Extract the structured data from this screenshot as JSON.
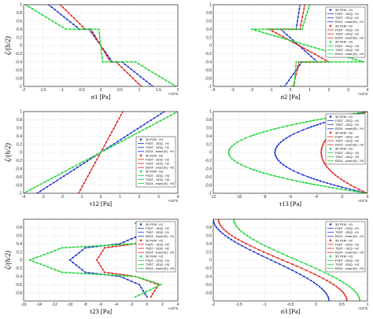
{
  "figure": {
    "title": ""
  },
  "colors": {
    "blue": "#1a2fd6",
    "red": "#e0231b",
    "green": "#22d438",
    "frame": "#000000",
    "grid": "#c8c8c8"
  },
  "legend_entries": [
    {
      "label": "3D FEM - H1",
      "series": 0,
      "kind": "dot"
    },
    {
      "label": "FSDT - GDQ - H1",
      "series": 0,
      "kind": "line"
    },
    {
      "label": "TSDT - GDQ - H1",
      "series": 0,
      "kind": "line"
    },
    {
      "label": "ED24 - exact (E) - H1",
      "series": 0,
      "kind": "line"
    },
    {
      "label": "3D FEM - H2",
      "series": 1,
      "kind": "dot"
    },
    {
      "label": "FSDT - GDQ - H2",
      "series": 1,
      "kind": "line"
    },
    {
      "label": "TSDT - GDQ - H2",
      "series": 1,
      "kind": "line"
    },
    {
      "label": "ED24 - exact (E) - H2",
      "series": 1,
      "kind": "line"
    },
    {
      "label": "3D FEM - H3",
      "series": 2,
      "kind": "dot"
    },
    {
      "label": "FSDT - GDQ - H3",
      "series": 2,
      "kind": "line"
    },
    {
      "label": "TSDT - GDQ - H3",
      "series": 2,
      "kind": "line"
    },
    {
      "label": "ED24 - exact (E) - H3",
      "series": 2,
      "kind": "line"
    }
  ],
  "chart_data": [
    {
      "type": "line",
      "ylabel": "ζ/(h/2)",
      "xlabel": "σ1 [Pa]",
      "x_exponent": "×10^6",
      "xlim": [
        -2,
        2
      ],
      "ylim": [
        -1,
        1
      ],
      "xticks": [
        -2,
        -1.5,
        -1,
        -0.5,
        0,
        0.5,
        1,
        1.5,
        2
      ],
      "yticks": [
        -1,
        -0.8,
        -0.6,
        -0.4,
        -0.2,
        0,
        0.2,
        0.4,
        0.6,
        0.8,
        1
      ],
      "legend": "none",
      "series": [
        {
          "color": "blue",
          "x": [
            -1.35,
            -0.55,
            -0.3,
            0.3,
            0.55,
            1.35
          ],
          "y": [
            1,
            0.4,
            0.4,
            -0.4,
            -0.4,
            -1
          ]
        },
        {
          "color": "red",
          "x": [
            -1.05,
            -0.4,
            -0.25,
            0.25,
            0.4,
            1.05
          ],
          "y": [
            1,
            0.4,
            0.4,
            -0.4,
            -0.4,
            -1
          ]
        },
        {
          "color": "green",
          "x": [
            -1.95,
            -0.9,
            -0.05,
            0.05,
            0.9,
            1.95
          ],
          "y": [
            1,
            0.4,
            0.4,
            -0.4,
            -0.4,
            -1
          ]
        }
      ]
    },
    {
      "type": "line",
      "ylabel": "",
      "xlabel": "σ2 [Pa]",
      "x_exponent": "×10^6",
      "xlim": [
        -4,
        4
      ],
      "ylim": [
        -1,
        1
      ],
      "xticks": [
        -4,
        -3,
        -2,
        -1,
        0,
        1,
        2,
        3,
        4
      ],
      "yticks": [
        -1,
        -0.8,
        -0.6,
        -0.4,
        -0.2,
        0,
        0.2,
        0.4,
        0.6,
        0.8,
        1
      ],
      "legend": "top-right",
      "series": [
        {
          "color": "blue",
          "x": [
            0.5,
            0.3,
            -0.5,
            1.4,
            0.6,
            -0.3,
            -0.5
          ],
          "y": [
            1,
            0.4,
            0.4,
            -0.4,
            -0.4,
            -1,
            -1
          ]
        },
        {
          "color": "red",
          "x": [
            0.75,
            0.5,
            -1.1,
            2.0,
            0.45,
            0.15,
            0.1
          ],
          "y": [
            1,
            0.4,
            0.4,
            -0.4,
            -0.4,
            -1,
            -1
          ]
        },
        {
          "color": "green",
          "x": [
            1.0,
            0.6,
            -2.0,
            3.8,
            0.3,
            0.2,
            0.1
          ],
          "y": [
            1,
            0.4,
            0.4,
            -0.4,
            -0.4,
            -1,
            -1
          ]
        }
      ]
    },
    {
      "type": "line",
      "ylabel": "ζ/(h/2)",
      "xlabel": "τ12 [Pa]",
      "x_exponent": "×10^6",
      "xlim": [
        -4,
        4
      ],
      "ylim": [
        -1,
        1
      ],
      "xticks": [
        -4,
        -3,
        -2,
        -1,
        0,
        1,
        2,
        3,
        4
      ],
      "yticks": [
        -1,
        -0.8,
        -0.6,
        -0.4,
        -0.2,
        0,
        0.2,
        0.4,
        0.6,
        0.8,
        1
      ],
      "legend": "right",
      "series": [
        {
          "color": "blue",
          "x": [
            -3.3,
            3.3
          ],
          "y": [
            -1,
            1
          ]
        },
        {
          "color": "red",
          "x": [
            -1.15,
            1.15
          ],
          "y": [
            -1,
            1
          ]
        },
        {
          "color": "green",
          "x": [
            -4.0,
            4.0
          ],
          "y": [
            -1,
            1
          ]
        }
      ]
    },
    {
      "type": "line",
      "ylabel": "",
      "xlabel": "τ13 [Pa]",
      "x_exponent": "×10^6",
      "xlim": [
        -12,
        0
      ],
      "ylim": [
        -1,
        1
      ],
      "xticks": [
        -12,
        -10,
        -8,
        -6,
        -4,
        -2,
        0
      ],
      "yticks": [
        -1,
        -0.8,
        -0.6,
        -0.4,
        -0.2,
        0,
        0.2,
        0.4,
        0.6,
        0.8,
        1
      ],
      "legend": "top-right",
      "series": [
        {
          "color": "blue",
          "kind": "parabola",
          "peak": -7.2,
          "zero": 0
        },
        {
          "color": "red",
          "kind": "parabola",
          "peak": -3.6,
          "zero": 0
        },
        {
          "color": "green",
          "kind": "parabola",
          "peak": -10.8,
          "zero": 0
        }
      ]
    },
    {
      "type": "line",
      "ylabel": "ζ/(h/2)",
      "xlabel": "τ23 [Pa]",
      "x_exponent": "×10^5",
      "xlim": [
        -16,
        4
      ],
      "ylim": [
        -1,
        1
      ],
      "xticks": [
        -16,
        -14,
        -12,
        -10,
        -8,
        -6,
        -4,
        -2,
        0,
        2,
        4
      ],
      "yticks": [
        -0.8,
        -0.6,
        -0.4,
        -0.2,
        0,
        0.2,
        0.4,
        0.6,
        0.8
      ],
      "legend": "top-right",
      "series": [
        {
          "color": "blue",
          "x": [
            0,
            -1,
            -3.5,
            -8,
            -10,
            -8,
            -3.5,
            -1,
            0
          ],
          "y": [
            0.9,
            0.6,
            0.4,
            0.3,
            0,
            -0.3,
            -0.4,
            -0.6,
            -0.9
          ]
        },
        {
          "color": "red",
          "x": [
            0.5,
            1.5,
            -1.5,
            -5.5,
            -6.5,
            -5.5,
            -1.5,
            1.5,
            0.5
          ],
          "y": [
            0.9,
            0.6,
            0.4,
            0.3,
            0,
            -0.3,
            -0.4,
            -0.6,
            -0.9
          ]
        },
        {
          "color": "green",
          "x": [
            -1.5,
            1.8,
            -1.5,
            -11,
            -15.2,
            -11,
            -1.5,
            1.8,
            -1.5
          ],
          "y": [
            0.9,
            0.6,
            0.4,
            0.3,
            0,
            -0.3,
            -0.4,
            -0.6,
            -0.9
          ]
        }
      ]
    },
    {
      "type": "line",
      "ylabel": "",
      "xlabel": "σ3 [Pa]",
      "x_exponent": "×10^5",
      "xlim": [
        -2,
        1
      ],
      "ylim": [
        -1,
        1
      ],
      "xticks": [
        -2,
        -1.5,
        -1,
        -0.5,
        0,
        0.5,
        1
      ],
      "yticks": [
        -0.8,
        -0.6,
        -0.4,
        -0.2,
        0,
        0.2,
        0.4,
        0.6,
        0.8
      ],
      "legend": "top-right",
      "series": [
        {
          "color": "blue",
          "kind": "sigmoid",
          "top": -2.0,
          "bottom": 0.25
        },
        {
          "color": "red",
          "kind": "sigmoid",
          "top": -1.9,
          "bottom": 0.6
        },
        {
          "color": "green",
          "kind": "sigmoid",
          "top": -1.6,
          "bottom": 0.85
        }
      ]
    }
  ]
}
